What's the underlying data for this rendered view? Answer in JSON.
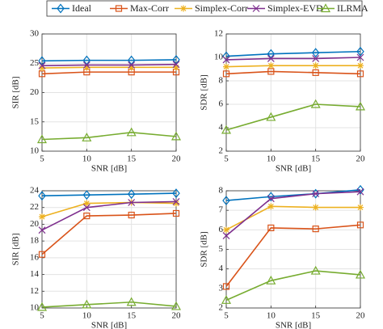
{
  "chart_data": [
    {
      "type": "line",
      "xlabel": "SNR [dB]",
      "ylabel": "SIR [dB]",
      "x": [
        5,
        10,
        15,
        20
      ],
      "xlim": [
        5,
        20
      ],
      "xticks": [
        5,
        10,
        15,
        20
      ],
      "ylim": [
        10,
        30
      ],
      "yticks": [
        10,
        15,
        20,
        25,
        30
      ],
      "grid": true,
      "series": [
        {
          "name": "Ideal",
          "color": "#0072bd",
          "marker": "diamond",
          "values": [
            25.4,
            25.5,
            25.5,
            25.6
          ]
        },
        {
          "name": "Max-Corr",
          "color": "#d95319",
          "marker": "square",
          "values": [
            23.2,
            23.5,
            23.5,
            23.5
          ]
        },
        {
          "name": "Simplex-Corr",
          "color": "#edb120",
          "marker": "star",
          "values": [
            24.2,
            24.3,
            24.3,
            24.3
          ]
        },
        {
          "name": "Simplex-EVD",
          "color": "#7e2f8e",
          "marker": "cross",
          "values": [
            24.6,
            24.7,
            24.7,
            24.8
          ]
        },
        {
          "name": "ILRMA",
          "color": "#77ac30",
          "marker": "triangle",
          "values": [
            12.0,
            12.3,
            13.2,
            12.5
          ]
        }
      ]
    },
    {
      "type": "line",
      "xlabel": "SNR [dB]",
      "ylabel": "SDR [dB]",
      "x": [
        5,
        10,
        15,
        20
      ],
      "xlim": [
        5,
        20
      ],
      "xticks": [
        5,
        10,
        15,
        20
      ],
      "ylim": [
        2,
        12
      ],
      "yticks": [
        2,
        4,
        6,
        8,
        10,
        12
      ],
      "grid": true,
      "series": [
        {
          "name": "Ideal",
          "color": "#0072bd",
          "marker": "diamond",
          "values": [
            10.1,
            10.3,
            10.4,
            10.5
          ]
        },
        {
          "name": "Max-Corr",
          "color": "#d95319",
          "marker": "square",
          "values": [
            8.6,
            8.8,
            8.7,
            8.6
          ]
        },
        {
          "name": "Simplex-Corr",
          "color": "#edb120",
          "marker": "star",
          "values": [
            9.2,
            9.3,
            9.3,
            9.3
          ]
        },
        {
          "name": "Simplex-EVD",
          "color": "#7e2f8e",
          "marker": "cross",
          "values": [
            9.8,
            9.9,
            9.9,
            10.0
          ]
        },
        {
          "name": "ILRMA",
          "color": "#77ac30",
          "marker": "triangle",
          "values": [
            3.8,
            4.9,
            6.0,
            5.8
          ]
        }
      ]
    },
    {
      "type": "line",
      "xlabel": "SNR [dB]",
      "ylabel": "SIR [dB]",
      "x": [
        5,
        10,
        15,
        20
      ],
      "xlim": [
        5,
        20
      ],
      "xticks": [
        5,
        10,
        15,
        20
      ],
      "ylim": [
        10,
        24
      ],
      "yticks": [
        10,
        12,
        14,
        16,
        18,
        20,
        22,
        24
      ],
      "grid": true,
      "series": [
        {
          "name": "Ideal",
          "color": "#0072bd",
          "marker": "diamond",
          "values": [
            23.4,
            23.5,
            23.6,
            23.7
          ]
        },
        {
          "name": "Max-Corr",
          "color": "#d95319",
          "marker": "square",
          "values": [
            16.4,
            21.0,
            21.1,
            21.3
          ]
        },
        {
          "name": "Simplex-Corr",
          "color": "#edb120",
          "marker": "star",
          "values": [
            20.9,
            22.5,
            22.6,
            22.5
          ]
        },
        {
          "name": "Simplex-EVD",
          "color": "#7e2f8e",
          "marker": "cross",
          "values": [
            19.3,
            22.0,
            22.6,
            22.7
          ]
        },
        {
          "name": "ILRMA",
          "color": "#77ac30",
          "marker": "triangle",
          "values": [
            10.1,
            10.4,
            10.7,
            10.2
          ]
        }
      ]
    },
    {
      "type": "line",
      "xlabel": "SNR [dB]",
      "ylabel": "SDR [dB]",
      "x": [
        5,
        10,
        15,
        20
      ],
      "xlim": [
        5,
        20
      ],
      "xticks": [
        5,
        10,
        15,
        20
      ],
      "ylim": [
        2,
        8
      ],
      "yticks": [
        2,
        3,
        4,
        5,
        6,
        7,
        8
      ],
      "grid": true,
      "series": [
        {
          "name": "Ideal",
          "color": "#0072bd",
          "marker": "diamond",
          "values": [
            7.5,
            7.7,
            7.85,
            8.05
          ]
        },
        {
          "name": "Max-Corr",
          "color": "#d95319",
          "marker": "square",
          "values": [
            3.1,
            6.1,
            6.05,
            6.25
          ]
        },
        {
          "name": "Simplex-Corr",
          "color": "#edb120",
          "marker": "star",
          "values": [
            6.0,
            7.2,
            7.15,
            7.15
          ]
        },
        {
          "name": "Simplex-EVD",
          "color": "#7e2f8e",
          "marker": "cross",
          "values": [
            5.7,
            7.6,
            7.85,
            7.95
          ]
        },
        {
          "name": "ILRMA",
          "color": "#77ac30",
          "marker": "triangle",
          "values": [
            2.4,
            3.4,
            3.9,
            3.7
          ]
        }
      ]
    }
  ]
}
